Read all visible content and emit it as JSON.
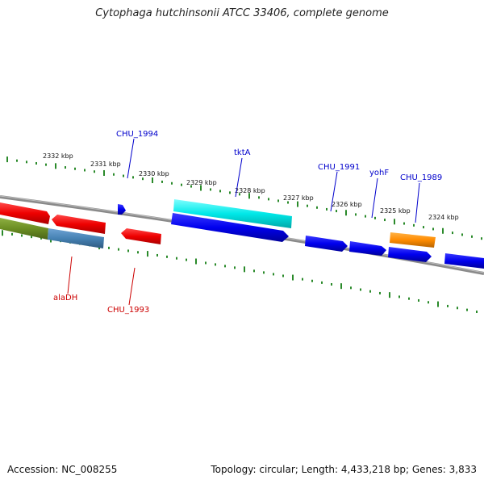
{
  "title": "Cytophaga hutchinsonii ATCC 33406, complete genome",
  "footer": {
    "accession": "Accession: NC_008255",
    "summary": "Topology: circular; Length: 4,433,218 bp; Genes: 3,833"
  },
  "colors": {
    "forward_strand": "#0000ee",
    "reverse_strand": "#ee0000",
    "backbone": "#888888",
    "ticks": "#2a8a2a",
    "tktA": "#00e8e8",
    "CHU_1989": "#ff8c00",
    "alaDH_left": "#6b8e23",
    "alaDH_right": "#4682b4"
  },
  "scale": {
    "unit": "kbp",
    "labels": [
      "2332 kbp",
      "2331 kbp",
      "2330 kbp",
      "2329 kbp",
      "2328 kbp",
      "2327 kbp",
      "2326 kbp",
      "2325 kbp",
      "2324 kbp"
    ]
  },
  "genes": {
    "forward": [
      "CHU_1994",
      "tktA",
      "CHU_1991",
      "yohF",
      "CHU_1989"
    ],
    "reverse": [
      "alaDH",
      "CHU_1993"
    ]
  }
}
